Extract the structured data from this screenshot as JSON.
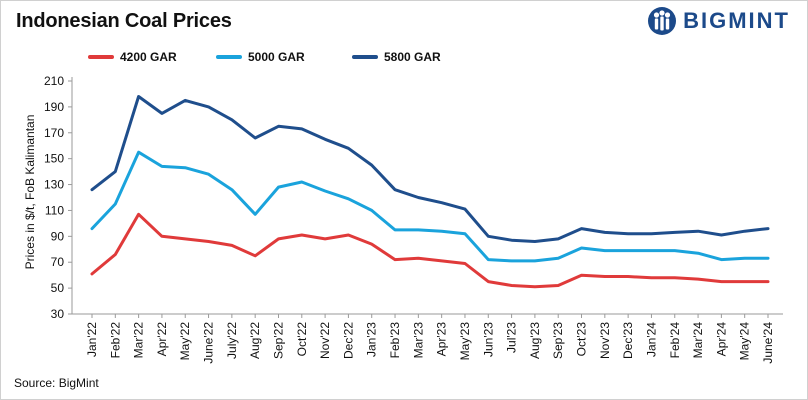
{
  "title": "Indonesian Coal Prices",
  "brand": {
    "name": "BIGMINT",
    "color": "#1c4a8a"
  },
  "source": "Source: BigMint",
  "chart_data": {
    "type": "line",
    "title": "Indonesian Coal Prices",
    "xlabel": "",
    "ylabel": "Prices in $/t, FoB Kalimantan",
    "ylim": [
      30,
      210
    ],
    "yticks": [
      30,
      50,
      70,
      90,
      110,
      130,
      150,
      170,
      190,
      210
    ],
    "grid": false,
    "legend_position": "top-left",
    "categories": [
      "Jan'22",
      "Feb'22",
      "Mar'22",
      "Apr'22",
      "May'22",
      "June'22",
      "July'22",
      "Aug'22",
      "Sep'22",
      "Oct'22",
      "Nov'22",
      "Dec'22",
      "Jan'23",
      "Feb'23",
      "Mar'23",
      "Apr'23",
      "May'23",
      "Jun'23",
      "Jul'23",
      "Aug'23",
      "Sep'23",
      "Oct'23",
      "Nov'23",
      "Dec'23",
      "Jan'24",
      "Feb'24",
      "Mar'24",
      "Apr'24",
      "May'24",
      "June'24"
    ],
    "series": [
      {
        "name": "4200 GAR",
        "color": "#e03a3a",
        "values": [
          61,
          76,
          107,
          90,
          88,
          86,
          83,
          75,
          88,
          91,
          88,
          91,
          84,
          72,
          73,
          71,
          69,
          55,
          52,
          51,
          52,
          60,
          59,
          59,
          58,
          58,
          57,
          55,
          55,
          55
        ]
      },
      {
        "name": "5000 GAR",
        "color": "#1aa3dc",
        "values": [
          96,
          115,
          155,
          144,
          143,
          138,
          126,
          107,
          128,
          132,
          125,
          119,
          110,
          95,
          95,
          94,
          92,
          72,
          71,
          71,
          73,
          81,
          79,
          79,
          79,
          79,
          77,
          72,
          73,
          73
        ]
      },
      {
        "name": "5800 GAR",
        "color": "#1f4e8c",
        "values": [
          126,
          140,
          198,
          185,
          195,
          190,
          180,
          166,
          175,
          173,
          165,
          158,
          145,
          126,
          120,
          116,
          111,
          90,
          87,
          86,
          88,
          96,
          93,
          92,
          92,
          93,
          94,
          91,
          94,
          96
        ]
      }
    ]
  }
}
